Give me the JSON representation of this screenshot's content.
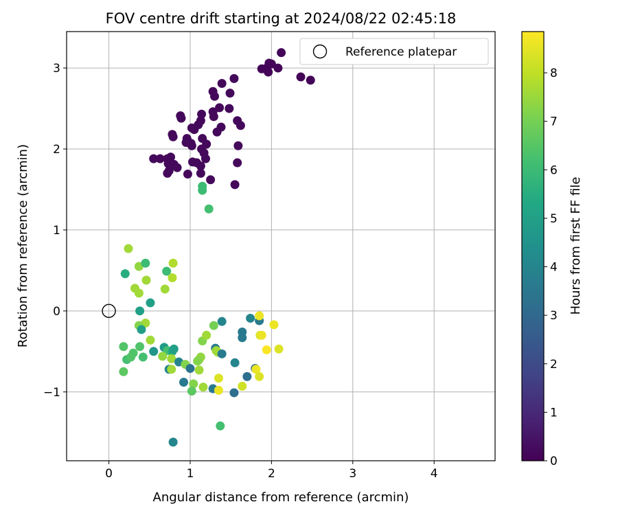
{
  "chart_data": {
    "type": "scatter",
    "title": "FOV centre drift starting at 2024/08/22 02:45:18",
    "xlabel": "Angular distance from reference (arcmin)",
    "ylabel": "Rotation from reference (arcmin)",
    "xlim": [
      -0.52,
      4.75
    ],
    "ylim": [
      -1.85,
      3.45
    ],
    "xticks": [
      0,
      1,
      2,
      3,
      4
    ],
    "yticks": [
      -1,
      0,
      1,
      2,
      3
    ],
    "xtick_labels": [
      "0",
      "1",
      "2",
      "3",
      "4"
    ],
    "ytick_labels": [
      "−1",
      "0",
      "1",
      "2",
      "3"
    ],
    "grid": true,
    "legend": {
      "position": "top-right",
      "entries": [
        {
          "label": "Reference platepar",
          "marker": "open-circle"
        }
      ]
    },
    "reference_point": {
      "x": 0,
      "y": 0
    },
    "colorbar": {
      "label": "Hours from first FF file",
      "min": 0,
      "max": 8.85,
      "ticks": [
        0,
        1,
        2,
        3,
        4,
        5,
        6,
        7,
        8
      ],
      "tick_labels": [
        "0",
        "1",
        "2",
        "3",
        "4",
        "5",
        "6",
        "7",
        "8"
      ],
      "colormap": "viridis"
    },
    "points": [
      {
        "x": 2.12,
        "y": 3.19,
        "h": 0.1
      },
      {
        "x": 1.94,
        "y": 3.0,
        "h": 0.1
      },
      {
        "x": 1.97,
        "y": 3.06,
        "h": 0.1
      },
      {
        "x": 2.0,
        "y": 3.05,
        "h": 0.1
      },
      {
        "x": 1.88,
        "y": 2.99,
        "h": 0.1
      },
      {
        "x": 1.96,
        "y": 2.95,
        "h": 0.1
      },
      {
        "x": 2.08,
        "y": 3.0,
        "h": 0.1
      },
      {
        "x": 2.36,
        "y": 2.89,
        "h": 0.1
      },
      {
        "x": 2.48,
        "y": 2.85,
        "h": 0.1
      },
      {
        "x": 1.54,
        "y": 2.87,
        "h": 0.2
      },
      {
        "x": 1.39,
        "y": 2.81,
        "h": 0.2
      },
      {
        "x": 1.28,
        "y": 2.71,
        "h": 0.2
      },
      {
        "x": 1.49,
        "y": 2.69,
        "h": 0.2
      },
      {
        "x": 1.3,
        "y": 2.65,
        "h": 0.2
      },
      {
        "x": 1.36,
        "y": 2.51,
        "h": 0.2
      },
      {
        "x": 1.48,
        "y": 2.5,
        "h": 0.2
      },
      {
        "x": 1.28,
        "y": 2.46,
        "h": 0.2
      },
      {
        "x": 1.14,
        "y": 2.43,
        "h": 0.2
      },
      {
        "x": 1.29,
        "y": 2.4,
        "h": 0.2
      },
      {
        "x": 0.88,
        "y": 2.41,
        "h": 0.2
      },
      {
        "x": 0.89,
        "y": 2.38,
        "h": 0.2
      },
      {
        "x": 1.13,
        "y": 2.35,
        "h": 0.2
      },
      {
        "x": 1.58,
        "y": 2.35,
        "h": 0.2
      },
      {
        "x": 1.62,
        "y": 2.29,
        "h": 0.2
      },
      {
        "x": 1.1,
        "y": 2.3,
        "h": 0.2
      },
      {
        "x": 1.38,
        "y": 2.27,
        "h": 0.2
      },
      {
        "x": 1.02,
        "y": 2.26,
        "h": 0.2
      },
      {
        "x": 1.33,
        "y": 2.21,
        "h": 0.2
      },
      {
        "x": 1.05,
        "y": 2.24,
        "h": 0.2
      },
      {
        "x": 0.78,
        "y": 2.18,
        "h": 0.2
      },
      {
        "x": 0.79,
        "y": 2.15,
        "h": 0.2
      },
      {
        "x": 0.96,
        "y": 2.13,
        "h": 0.2
      },
      {
        "x": 1.15,
        "y": 2.13,
        "h": 0.2
      },
      {
        "x": 1.01,
        "y": 2.07,
        "h": 0.2
      },
      {
        "x": 0.95,
        "y": 2.08,
        "h": 0.2
      },
      {
        "x": 1.2,
        "y": 2.06,
        "h": 0.2
      },
      {
        "x": 1.59,
        "y": 2.04,
        "h": 0.2
      },
      {
        "x": 1.02,
        "y": 2.04,
        "h": 0.2
      },
      {
        "x": 1.14,
        "y": 2.0,
        "h": 0.2
      },
      {
        "x": 1.17,
        "y": 1.95,
        "h": 0.2
      },
      {
        "x": 0.55,
        "y": 1.88,
        "h": 0.2
      },
      {
        "x": 0.63,
        "y": 1.88,
        "h": 0.2
      },
      {
        "x": 0.72,
        "y": 1.88,
        "h": 0.2
      },
      {
        "x": 0.76,
        "y": 1.9,
        "h": 0.2
      },
      {
        "x": 1.19,
        "y": 1.88,
        "h": 0.2
      },
      {
        "x": 0.73,
        "y": 1.82,
        "h": 0.2
      },
      {
        "x": 0.8,
        "y": 1.81,
        "h": 0.2
      },
      {
        "x": 1.03,
        "y": 1.84,
        "h": 0.2
      },
      {
        "x": 1.08,
        "y": 1.83,
        "h": 0.2
      },
      {
        "x": 1.13,
        "y": 1.79,
        "h": 0.2
      },
      {
        "x": 1.58,
        "y": 1.83,
        "h": 0.2
      },
      {
        "x": 0.84,
        "y": 1.77,
        "h": 0.2
      },
      {
        "x": 0.74,
        "y": 1.73,
        "h": 0.2
      },
      {
        "x": 0.72,
        "y": 1.7,
        "h": 0.2
      },
      {
        "x": 0.97,
        "y": 1.69,
        "h": 0.2
      },
      {
        "x": 1.13,
        "y": 1.7,
        "h": 0.2
      },
      {
        "x": 1.25,
        "y": 1.62,
        "h": 0.2
      },
      {
        "x": 1.55,
        "y": 1.56,
        "h": 0.2
      },
      {
        "x": 1.15,
        "y": 1.54,
        "h": 6.0
      },
      {
        "x": 1.15,
        "y": 1.49,
        "h": 6.0
      },
      {
        "x": 1.23,
        "y": 1.26,
        "h": 6.2
      },
      {
        "x": 0.24,
        "y": 0.77,
        "h": 7.6
      },
      {
        "x": 0.37,
        "y": 0.55,
        "h": 7.4
      },
      {
        "x": 0.79,
        "y": 0.59,
        "h": 7.8
      },
      {
        "x": 0.45,
        "y": 0.59,
        "h": 6.0
      },
      {
        "x": 0.71,
        "y": 0.49,
        "h": 6.0
      },
      {
        "x": 0.2,
        "y": 0.46,
        "h": 5.5
      },
      {
        "x": 0.46,
        "y": 0.38,
        "h": 7.6
      },
      {
        "x": 0.78,
        "y": 0.41,
        "h": 7.8
      },
      {
        "x": 0.32,
        "y": 0.28,
        "h": 7.6
      },
      {
        "x": 0.37,
        "y": 0.22,
        "h": 7.6
      },
      {
        "x": 0.69,
        "y": 0.27,
        "h": 7.6
      },
      {
        "x": 0.51,
        "y": 0.1,
        "h": 5.0
      },
      {
        "x": 0.38,
        "y": 0.0,
        "h": 5.0
      },
      {
        "x": 0.45,
        "y": -0.15,
        "h": 7.6
      },
      {
        "x": 0.37,
        "y": -0.18,
        "h": 7.2
      },
      {
        "x": 0.4,
        "y": -0.23,
        "h": 5.0
      },
      {
        "x": 0.51,
        "y": -0.36,
        "h": 7.6
      },
      {
        "x": 0.18,
        "y": -0.44,
        "h": 6.4
      },
      {
        "x": 0.38,
        "y": -0.44,
        "h": 6.4
      },
      {
        "x": 0.55,
        "y": -0.5,
        "h": 4.6
      },
      {
        "x": 0.3,
        "y": -0.52,
        "h": 6.4
      },
      {
        "x": 0.22,
        "y": -0.6,
        "h": 6.2
      },
      {
        "x": 0.27,
        "y": -0.57,
        "h": 6.4
      },
      {
        "x": 0.42,
        "y": -0.57,
        "h": 6.2
      },
      {
        "x": 0.18,
        "y": -0.75,
        "h": 6.6
      },
      {
        "x": 0.68,
        "y": -0.45,
        "h": 4.8
      },
      {
        "x": 0.72,
        "y": -0.49,
        "h": 6.2
      },
      {
        "x": 0.78,
        "y": -0.5,
        "h": 5.4
      },
      {
        "x": 0.66,
        "y": -0.56,
        "h": 7.4
      },
      {
        "x": 0.77,
        "y": -0.59,
        "h": 7.6
      },
      {
        "x": 0.8,
        "y": -0.47,
        "h": 5.0
      },
      {
        "x": 0.86,
        "y": -0.63,
        "h": 4.0
      },
      {
        "x": 0.94,
        "y": -0.66,
        "h": 7.2
      },
      {
        "x": 0.74,
        "y": -0.72,
        "h": 4.0
      },
      {
        "x": 0.77,
        "y": -0.72,
        "h": 7.6
      },
      {
        "x": 1.0,
        "y": -0.71,
        "h": 3.4
      },
      {
        "x": 0.92,
        "y": -0.88,
        "h": 3.6
      },
      {
        "x": 1.04,
        "y": -0.9,
        "h": 7.2
      },
      {
        "x": 1.02,
        "y": -0.99,
        "h": 6.6
      },
      {
        "x": 0.79,
        "y": -1.62,
        "h": 4.0
      },
      {
        "x": 1.15,
        "y": -0.37,
        "h": 7.2
      },
      {
        "x": 1.2,
        "y": -0.3,
        "h": 7.6
      },
      {
        "x": 1.29,
        "y": -0.18,
        "h": 7.0
      },
      {
        "x": 1.39,
        "y": -0.13,
        "h": 4.0
      },
      {
        "x": 1.11,
        "y": -0.6,
        "h": 7.4
      },
      {
        "x": 1.13,
        "y": -0.57,
        "h": 7.4
      },
      {
        "x": 1.09,
        "y": -0.62,
        "h": 7.2
      },
      {
        "x": 1.11,
        "y": -0.73,
        "h": 7.6
      },
      {
        "x": 1.31,
        "y": -0.46,
        "h": 3.6
      },
      {
        "x": 1.32,
        "y": -0.49,
        "h": 7.6
      },
      {
        "x": 1.34,
        "y": -0.51,
        "h": 7.6
      },
      {
        "x": 1.39,
        "y": -0.53,
        "h": 3.6
      },
      {
        "x": 1.16,
        "y": -0.94,
        "h": 7.6
      },
      {
        "x": 1.28,
        "y": -0.96,
        "h": 3.6
      },
      {
        "x": 1.35,
        "y": -0.98,
        "h": 8.6
      },
      {
        "x": 1.35,
        "y": -0.83,
        "h": 8.4
      },
      {
        "x": 1.37,
        "y": -1.42,
        "h": 6.2
      },
      {
        "x": 1.55,
        "y": -0.64,
        "h": 4.0
      },
      {
        "x": 1.54,
        "y": -1.01,
        "h": 3.2
      },
      {
        "x": 1.64,
        "y": -0.26,
        "h": 3.6
      },
      {
        "x": 1.64,
        "y": -0.33,
        "h": 3.6
      },
      {
        "x": 1.64,
        "y": -0.93,
        "h": 8.2
      },
      {
        "x": 1.7,
        "y": -0.81,
        "h": 3.2
      },
      {
        "x": 1.74,
        "y": -0.09,
        "h": 4.0
      },
      {
        "x": 1.8,
        "y": -0.71,
        "h": 3.2
      },
      {
        "x": 1.81,
        "y": -0.72,
        "h": 8.6
      },
      {
        "x": 1.85,
        "y": -0.81,
        "h": 8.4
      },
      {
        "x": 1.85,
        "y": -0.12,
        "h": 3.6
      },
      {
        "x": 1.85,
        "y": -0.06,
        "h": 8.6
      },
      {
        "x": 1.86,
        "y": -0.3,
        "h": 8.4
      },
      {
        "x": 1.88,
        "y": -0.3,
        "h": 8.6
      },
      {
        "x": 1.94,
        "y": -0.48,
        "h": 8.8
      },
      {
        "x": 2.03,
        "y": -0.17,
        "h": 8.6
      },
      {
        "x": 2.09,
        "y": -0.47,
        "h": 8.4
      }
    ]
  }
}
